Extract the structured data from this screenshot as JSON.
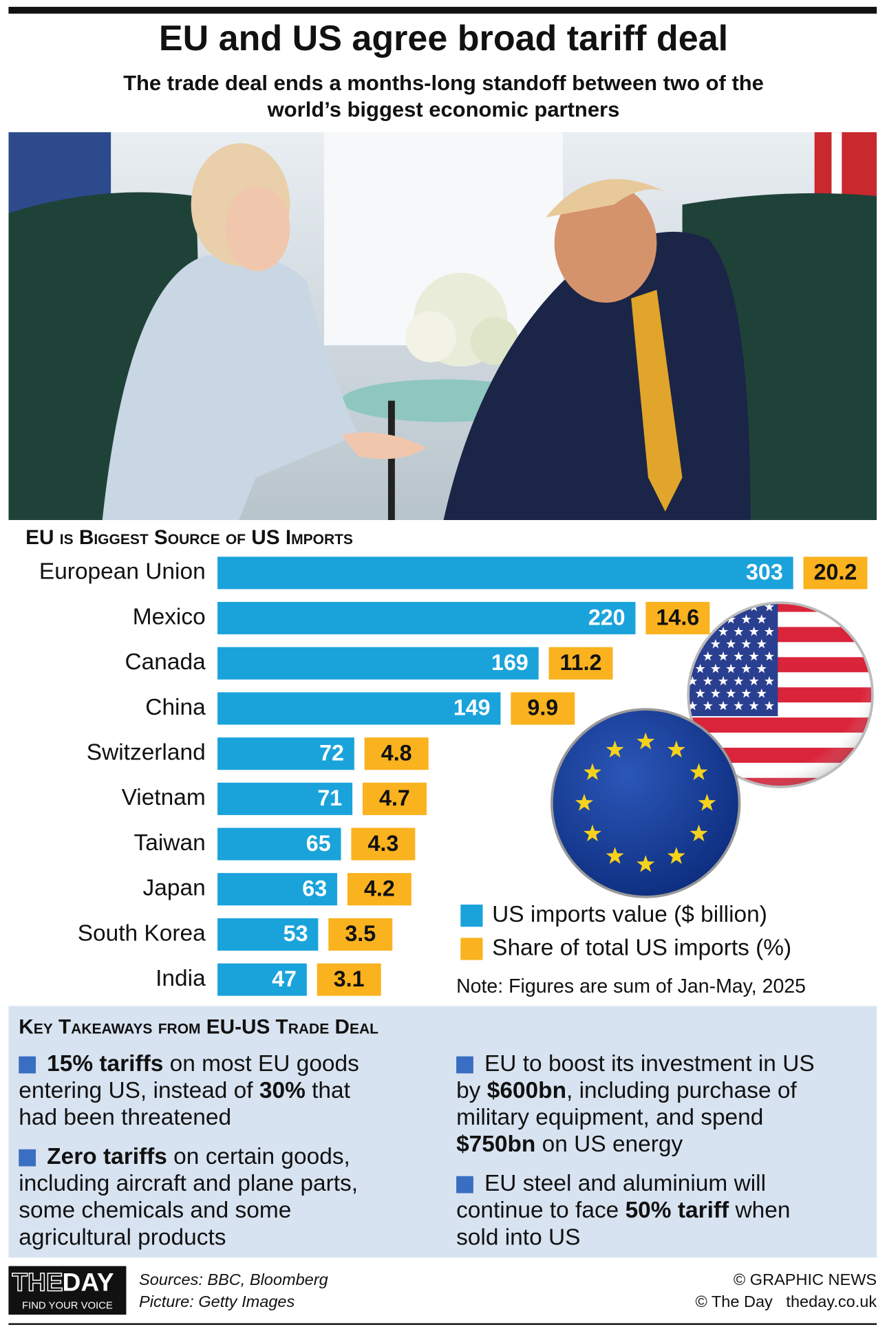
{
  "header": {
    "title": "EU and US agree broad tariff deal",
    "subtitle_lines": [
      "The trade deal ends a months-long standoff between two of the",
      "world’s biggest economic partners"
    ]
  },
  "chart_data": {
    "type": "bar",
    "orientation": "horizontal",
    "title": "EU is Biggest Source of US Imports",
    "categories": [
      "European Union",
      "Mexico",
      "Canada",
      "China",
      "Switzerland",
      "Vietnam",
      "Taiwan",
      "Japan",
      "South Korea",
      "India"
    ],
    "series": [
      {
        "name": "US imports value ($ billion)",
        "color": "#1aa3db",
        "values": [
          303,
          220,
          169,
          149,
          72,
          71,
          65,
          63,
          53,
          47
        ]
      },
      {
        "name": "Share of total US imports (%)",
        "color": "#fab21f",
        "values": [
          20.2,
          14.6,
          11.2,
          9.9,
          4.8,
          4.7,
          4.3,
          4.2,
          3.5,
          3.1
        ]
      }
    ],
    "note": "Note: Figures are sum of Jan-May, 2025"
  },
  "takeaways": {
    "title": "Key Takeaways from EU-US Trade Deal",
    "columns": [
      [
        [
          [
            {
              "text": "15% tariffs",
              "bold": true
            },
            {
              "text": " on most EU goods",
              "bold": false
            }
          ],
          [
            {
              "text": "entering US, instead of ",
              "bold": false
            },
            {
              "text": "30%",
              "bold": true
            },
            {
              "text": " that",
              "bold": false
            }
          ],
          [
            {
              "text": "had been threatened",
              "bold": false
            }
          ]
        ],
        [
          [
            {
              "text": "Zero tariffs",
              "bold": true
            },
            {
              "text": " on certain goods,",
              "bold": false
            }
          ],
          [
            {
              "text": "including aircraft and plane parts,",
              "bold": false
            }
          ],
          [
            {
              "text": "some chemicals and some",
              "bold": false
            }
          ],
          [
            {
              "text": "agricultural products",
              "bold": false
            }
          ]
        ]
      ],
      [
        [
          [
            {
              "text": "EU to boost its investment in US",
              "bold": false
            }
          ],
          [
            {
              "text": "by ",
              "bold": false
            },
            {
              "text": "$600bn",
              "bold": true
            },
            {
              "text": ", including purchase of",
              "bold": false
            }
          ],
          [
            {
              "text": "military equipment, and spend",
              "bold": false
            }
          ],
          [
            {
              "text": "$750bn",
              "bold": true
            },
            {
              "text": " on US energy",
              "bold": false
            }
          ]
        ],
        [
          [
            {
              "text": "EU steel and aluminium will",
              "bold": false
            }
          ],
          [
            {
              "text": "continue to face ",
              "bold": false
            },
            {
              "text": "50% tariff",
              "bold": true
            },
            {
              "text": " when",
              "bold": false
            }
          ],
          [
            {
              "text": "sold into US",
              "bold": false
            }
          ]
        ]
      ]
    ]
  },
  "footer": {
    "logo_left": "THE",
    "logo_right": "DAY",
    "tagline": "FIND YOUR VOICE",
    "sources": [
      "Sources: BBC, Bloomberg",
      "Picture: Getty Images"
    ],
    "credits": [
      "© GRAPHIC NEWS",
      "© The Day   theday.co.uk"
    ]
  }
}
